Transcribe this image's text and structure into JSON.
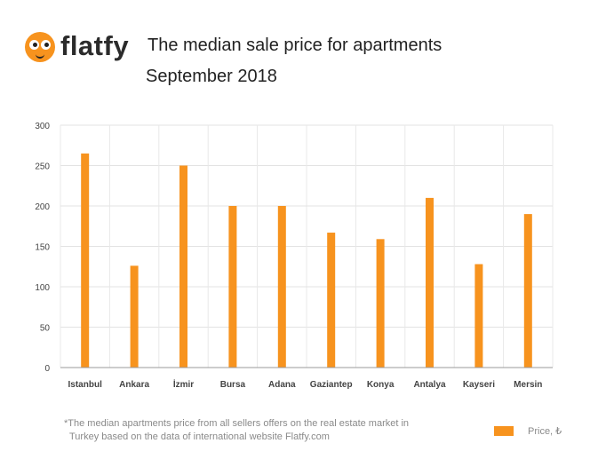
{
  "brand": {
    "name": "flatfy",
    "color": "#f7931e"
  },
  "header": {
    "title": "The median sale price for apartments",
    "subtitle": "September 2018"
  },
  "chart_data": {
    "type": "bar",
    "categories": [
      "Istanbul",
      "Ankara",
      "İzmir",
      "Bursa",
      "Adana",
      "Gaziantep",
      "Konya",
      "Antalya",
      "Kayseri",
      "Mersin"
    ],
    "series": [
      {
        "name": "Price, ₺",
        "values": [
          265,
          126,
          250,
          200,
          200,
          167,
          159,
          210,
          128,
          190
        ],
        "color": "#f7931e"
      }
    ],
    "yticks": [
      0,
      50,
      100,
      150,
      200,
      250,
      300
    ],
    "ylim": [
      0,
      300
    ],
    "grid": true,
    "legend": "bottom-right"
  },
  "footnote": {
    "line1": "*The median apartments price from all sellers offers on the real estate market in",
    "line2": "Turkey based on the data of international website Flatfy.com"
  },
  "legend": {
    "label": "Price, ₺"
  }
}
